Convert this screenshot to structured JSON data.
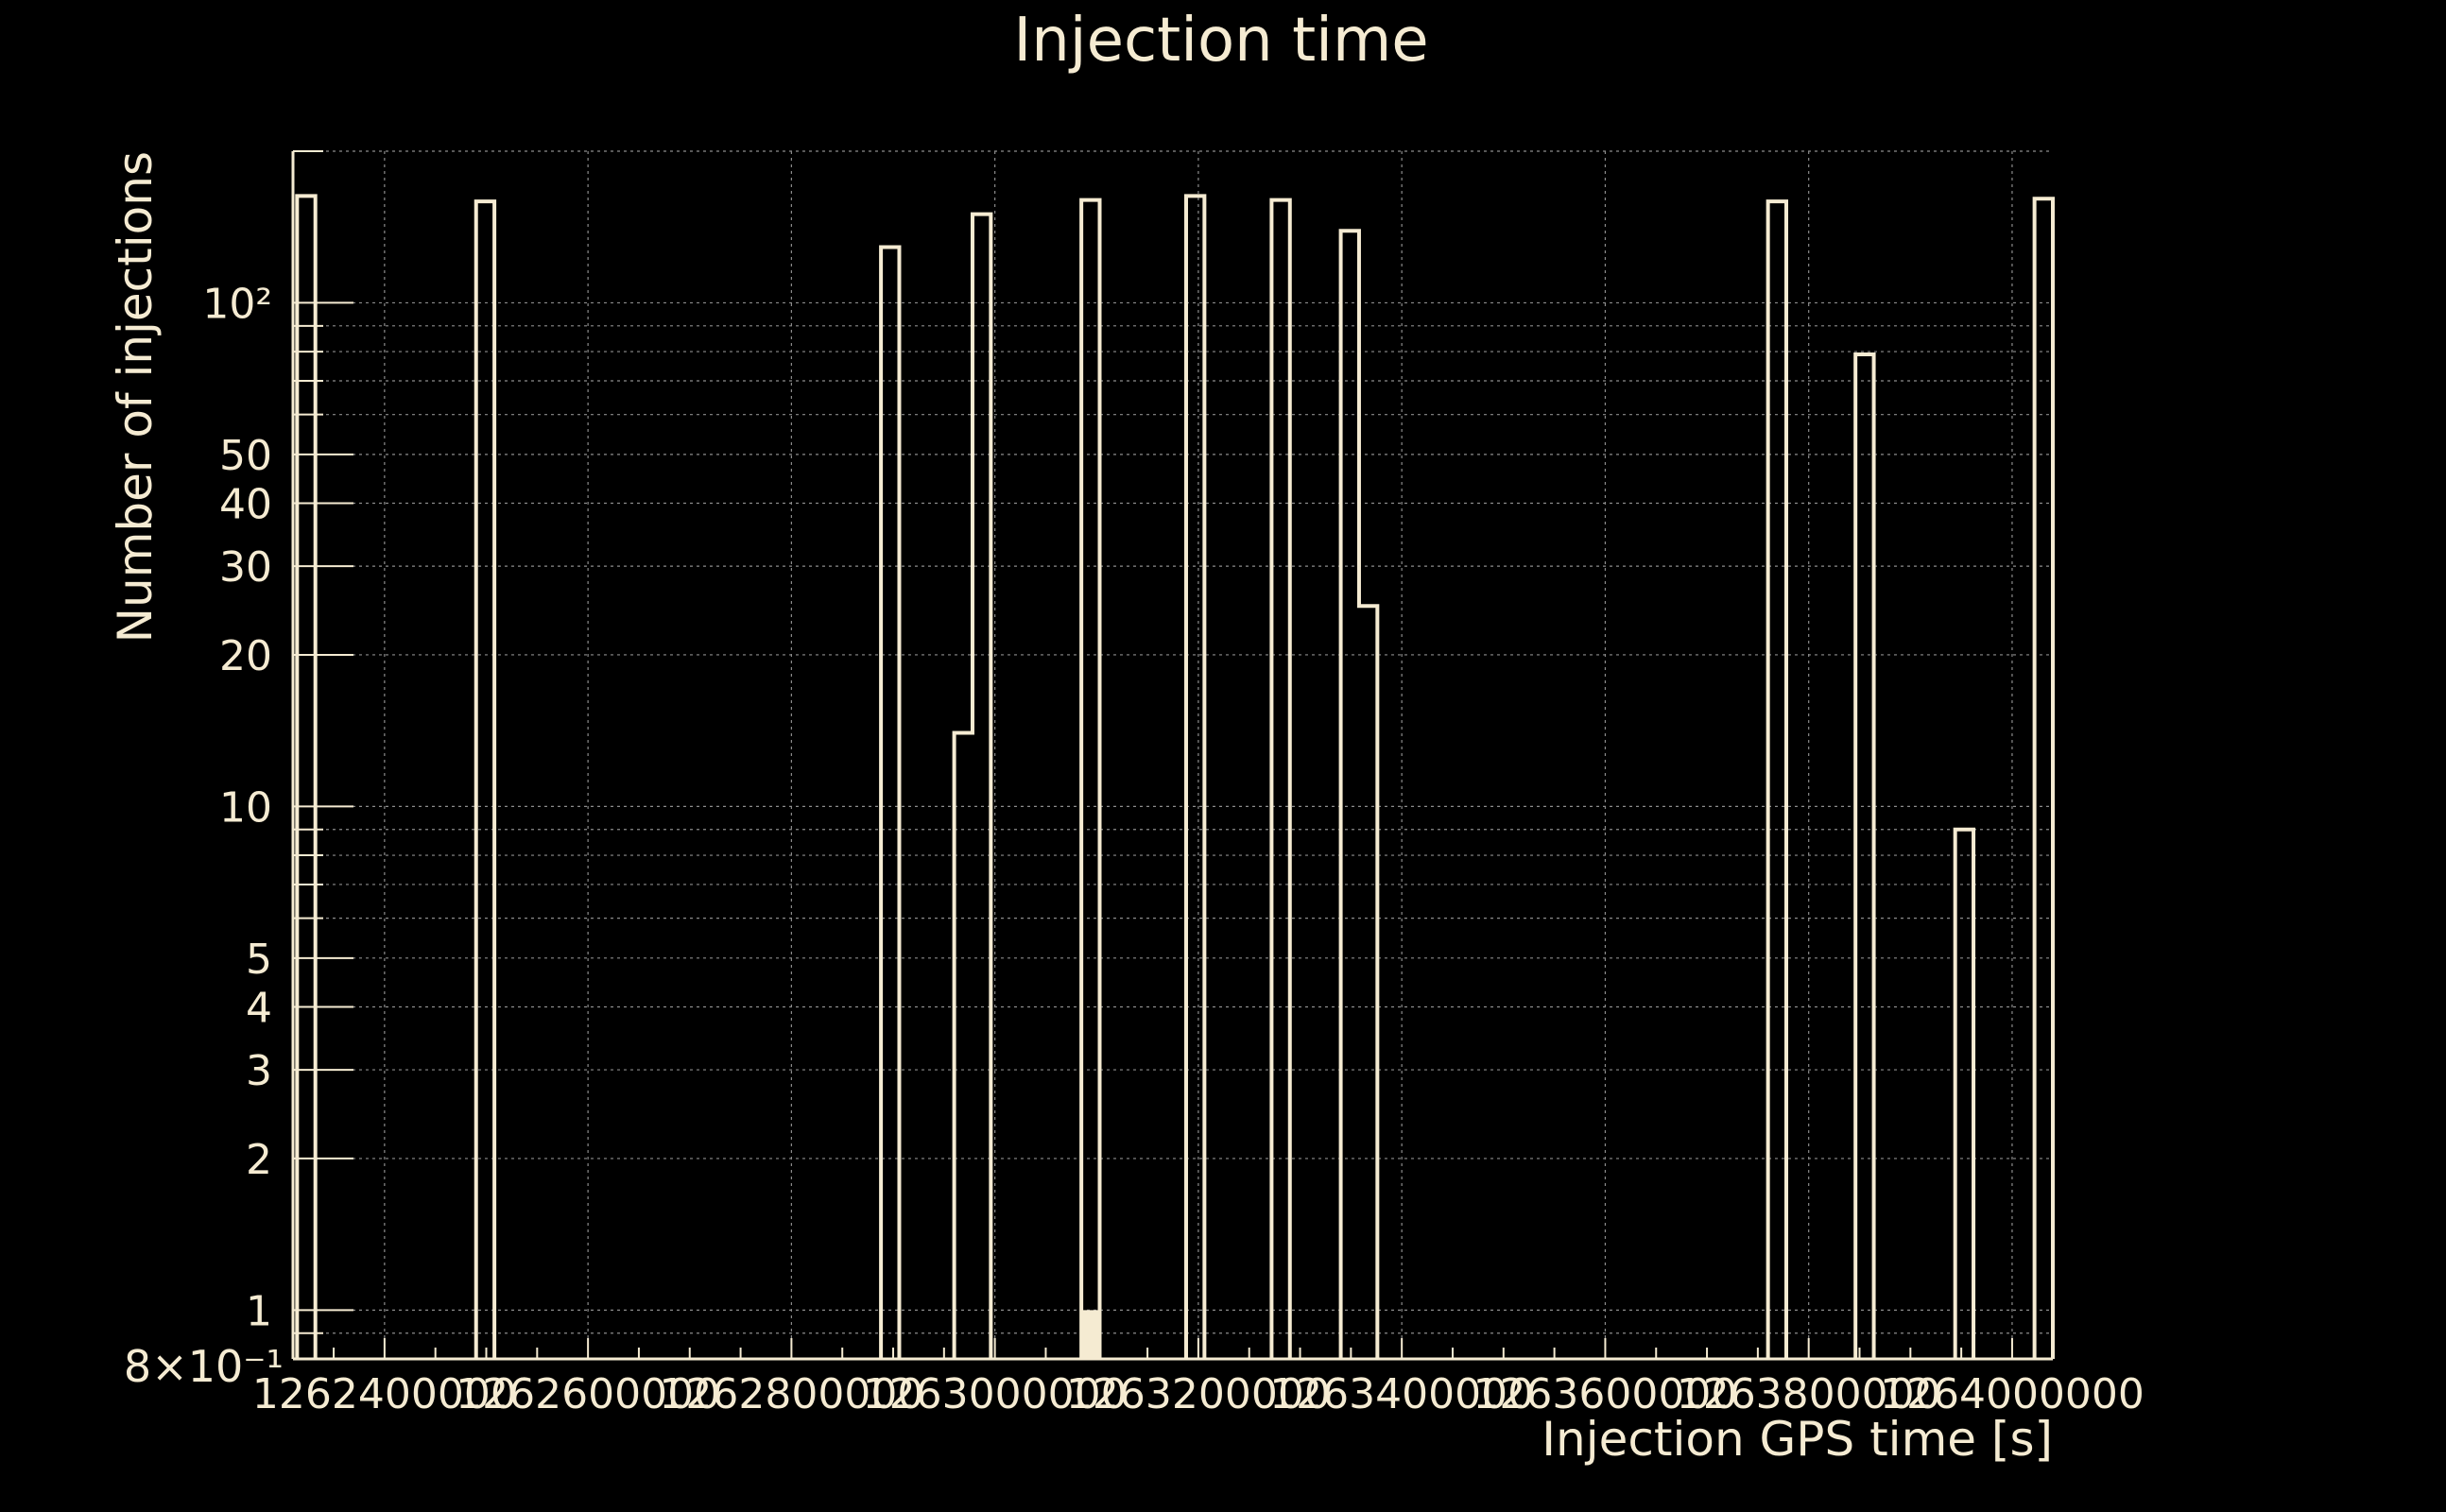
{
  "chart_data": {
    "type": "histogram",
    "title": "Injection time",
    "xlabel": "Injection GPS time [s]",
    "ylabel": "Number of injections",
    "yscale": "log",
    "xlim": [
      1262310000,
      1264040000
    ],
    "ylim": [
      0.8,
      200
    ],
    "grid": true,
    "xticks": [
      1262400000,
      1262600000,
      1262800000,
      1263000000,
      1263200000,
      1263400000,
      1263600000,
      1263800000,
      1264000000
    ],
    "xtick_labels": [
      "1262400000",
      "1262600000",
      "1262800000",
      "1263000000",
      "1263200000",
      "1263400000",
      "1263600000",
      "1263800000",
      "1264000000"
    ],
    "yticks": [
      1,
      2,
      3,
      4,
      5,
      10,
      20,
      30,
      40,
      50,
      100
    ],
    "ytick_labels": [
      "1",
      "2",
      "3",
      "4",
      "5",
      "10",
      "20",
      "30",
      "40",
      "50",
      "10²"
    ],
    "ymin_label": "8×10⁻¹",
    "colors": {
      "background": "#000000",
      "foreground": "#f5ebd2",
      "grid": "#8c8c8c"
    },
    "bins": [
      {
        "x0": 1262314000,
        "x1": 1262332000,
        "count": 163
      },
      {
        "x0": 1262490000,
        "x1": 1262508000,
        "count": 159
      },
      {
        "x0": 1262888000,
        "x1": 1262906000,
        "count": 129
      },
      {
        "x0": 1262960000,
        "x1": 1262978000,
        "count": 14
      },
      {
        "x0": 1262978000,
        "x1": 1262996000,
        "count": 150
      },
      {
        "x0": 1263085000,
        "x1": 1263103000,
        "count": 160
      },
      {
        "x0": 1263188000,
        "x1": 1263206000,
        "count": 163
      },
      {
        "x0": 1263272000,
        "x1": 1263290000,
        "count": 160
      },
      {
        "x0": 1263340000,
        "x1": 1263358000,
        "count": 139
      },
      {
        "x0": 1263358000,
        "x1": 1263376000,
        "count": 25
      },
      {
        "x0": 1263760000,
        "x1": 1263778000,
        "count": 159
      },
      {
        "x0": 1263846000,
        "x1": 1263864000,
        "count": 79
      },
      {
        "x0": 1263944000,
        "x1": 1263962000,
        "count": 9
      },
      {
        "x0": 1264022000,
        "x1": 1264040000,
        "count": 161
      }
    ],
    "filled_bins": [
      {
        "x0": 1263085000,
        "x1": 1263103000,
        "count": 1
      }
    ]
  }
}
